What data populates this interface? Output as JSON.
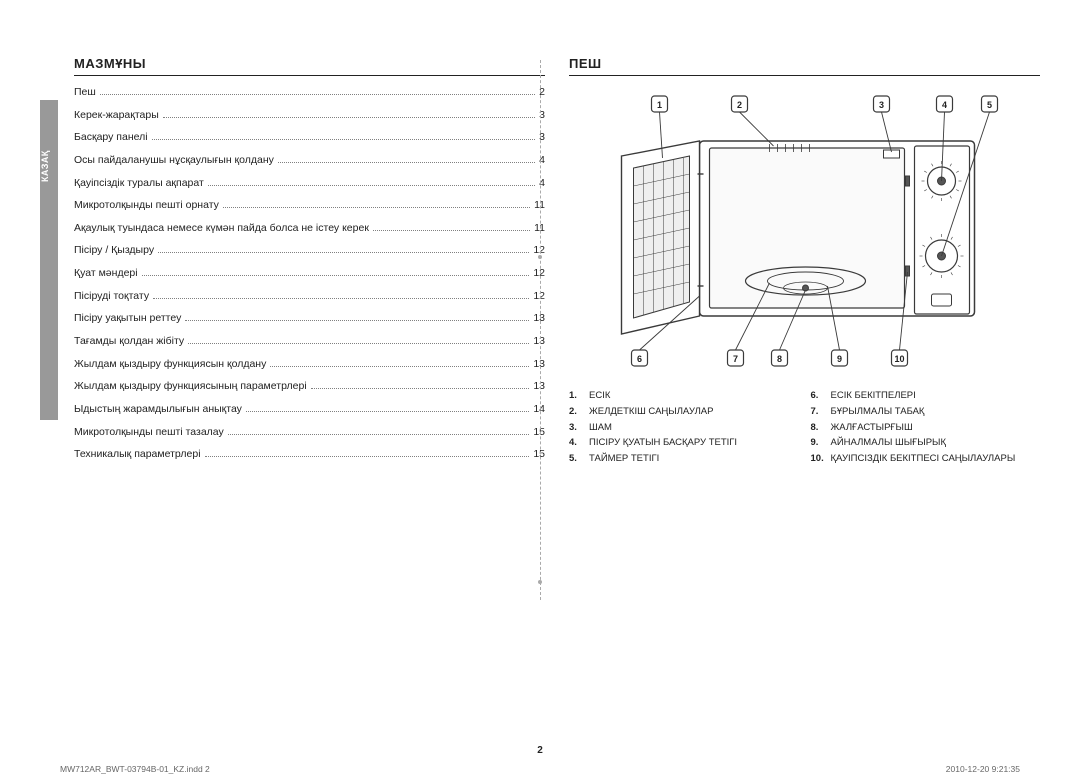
{
  "side_tab": "КАЗАҚ",
  "left": {
    "heading": "МАЗМҰНЫ",
    "toc": [
      {
        "title": "Пеш",
        "page": "2"
      },
      {
        "title": "Керек-жарақтары",
        "page": "3"
      },
      {
        "title": "Басқару панелі",
        "page": "3"
      },
      {
        "title": "Осы пайдаланушы нұсқаулығын қолдану",
        "page": "4"
      },
      {
        "title": "Қауіпсіздік туралы ақпарат",
        "page": "4"
      },
      {
        "title": "Микротолқынды пешті орнату",
        "page": "11"
      },
      {
        "title": "Ақаулық туындаса немесе күмән пайда болса не істеу керек",
        "page": "11"
      },
      {
        "title": "Пісіру / Қыздыру",
        "page": "12"
      },
      {
        "title": "Қуат мәндері",
        "page": "12"
      },
      {
        "title": "Пісіруді тоқтату",
        "page": "12"
      },
      {
        "title": "Пісіру уақытын реттеу",
        "page": "13"
      },
      {
        "title": "Тағамды қолдан жібіту",
        "page": "13"
      },
      {
        "title": "Жылдам қыздыру функциясын қолдану",
        "page": "13"
      },
      {
        "title": "Жылдам қыздыру функциясының параметрлері",
        "page": "13"
      },
      {
        "title": "Ыдыстың жарамдылығын анықтау",
        "page": "14"
      },
      {
        "title": "Микротолқынды пешті тазалау",
        "page": "15"
      },
      {
        "title": "Техникалық параметрлері",
        "page": "15"
      }
    ]
  },
  "right": {
    "heading": "ПЕШ",
    "callouts_top": [
      "1",
      "2",
      "3",
      "4",
      "5"
    ],
    "callouts_bottom": [
      "6",
      "7",
      "8",
      "9",
      "10"
    ],
    "legend_left": [
      {
        "n": "1.",
        "t": "ЕСІК"
      },
      {
        "n": "2.",
        "t": "ЖЕЛДЕТКІШ САҢЫЛАУЛАР"
      },
      {
        "n": "3.",
        "t": "ШАМ"
      },
      {
        "n": "4.",
        "t": "ПІСІРУ ҚУАТЫН БАСҚАРУ ТЕТІГІ"
      },
      {
        "n": "5.",
        "t": "ТАЙМЕР ТЕТІГІ"
      }
    ],
    "legend_right": [
      {
        "n": "6.",
        "t": "ЕСІК БЕКІТПЕЛЕРІ"
      },
      {
        "n": "7.",
        "t": "БҰРЫЛМАЛЫ ТАБАҚ"
      },
      {
        "n": "8.",
        "t": "ЖАЛҒАСТЫРҒЫШ"
      },
      {
        "n": "9.",
        "t": "АЙНАЛМАЛЫ ШЫҒЫРЫҚ"
      },
      {
        "n": "10.",
        "t": "ҚАУІПСІЗДІК БЕКІТПЕСІ САҢЫЛАУЛАРЫ"
      }
    ]
  },
  "page_number": "2",
  "footer_left": "MW712AR_BWT-03794B-01_KZ.indd   2",
  "footer_right": "2010-12-20   9:21:35",
  "diagram": {
    "stroke": "#3a3a3a",
    "panel_line": "#555",
    "box_fill": "#fff",
    "callout_box_size": 15,
    "font_size": 9
  }
}
